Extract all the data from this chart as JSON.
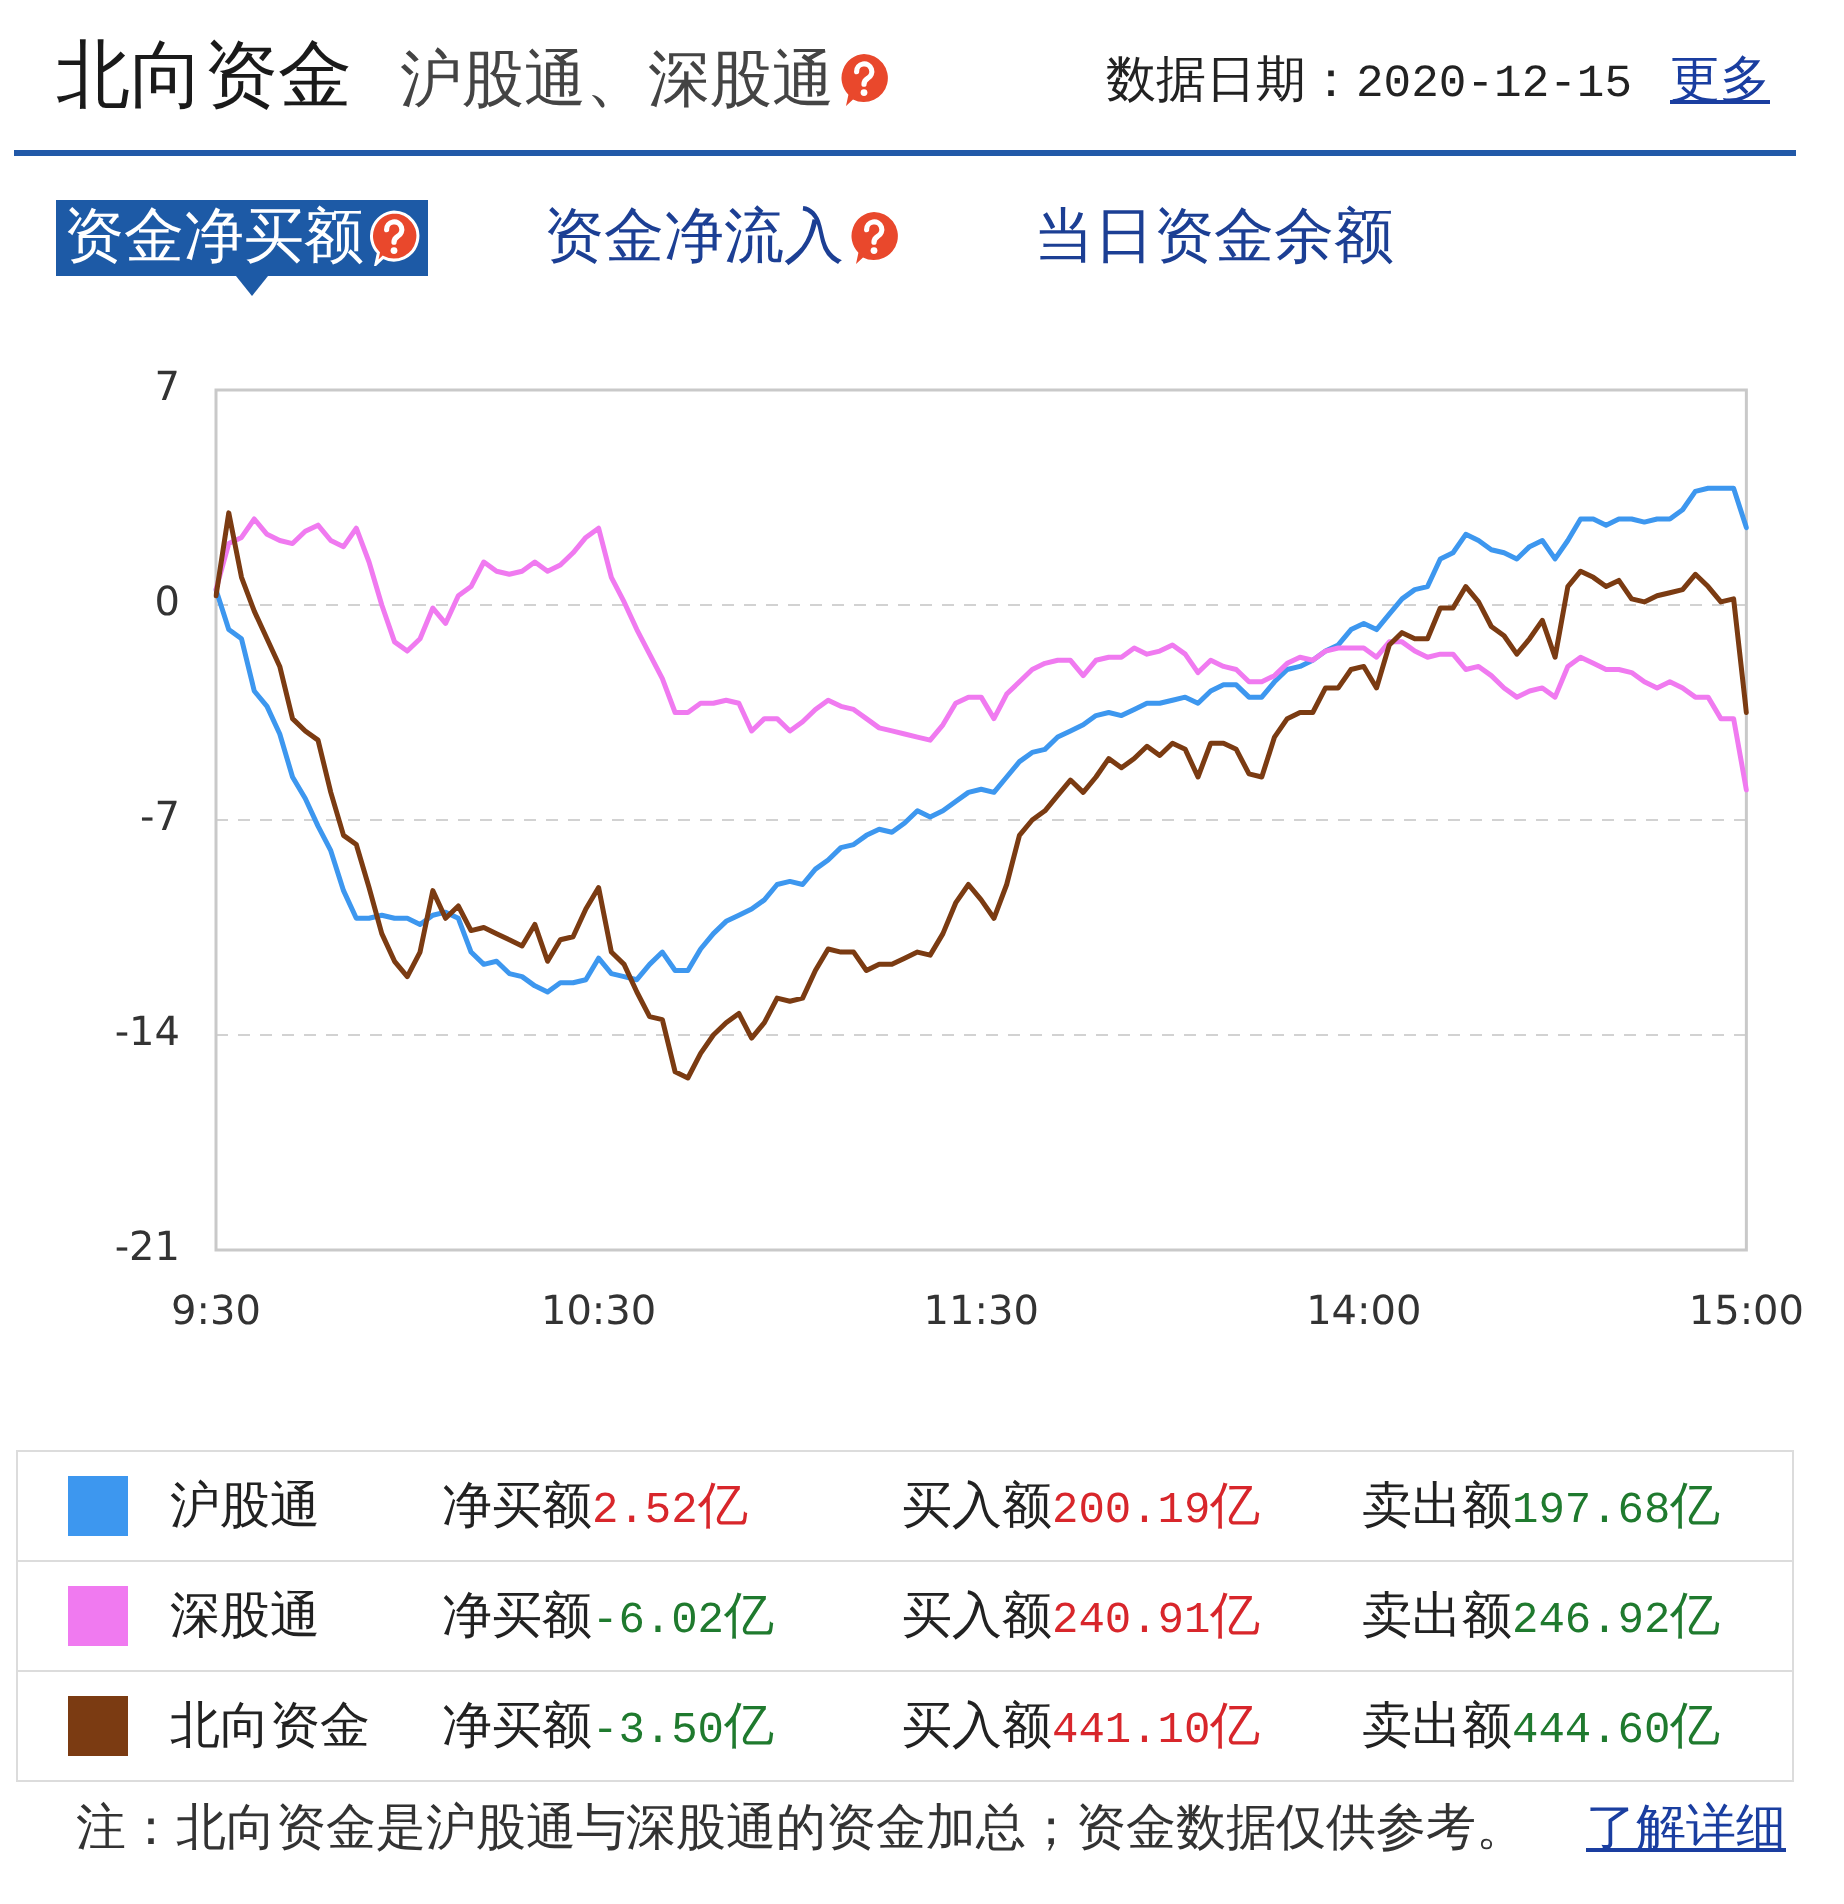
{
  "chart_data": {
    "type": "line",
    "title": "北向资金",
    "subtitle": "沪股通、深股通",
    "categories": [
      "9:30",
      null,
      null,
      null,
      null,
      null,
      null,
      null,
      null,
      null,
      null,
      null,
      null,
      null,
      null,
      null,
      null,
      null,
      null,
      null,
      null,
      null,
      null,
      null,
      null,
      null,
      null,
      null,
      null,
      null,
      "10:30",
      null,
      null,
      null,
      null,
      null,
      null,
      null,
      null,
      null,
      null,
      null,
      null,
      null,
      null,
      null,
      null,
      null,
      null,
      null,
      null,
      null,
      null,
      null,
      null,
      null,
      null,
      null,
      null,
      null,
      "11:30",
      null,
      null,
      null,
      null,
      null,
      null,
      null,
      null,
      null,
      null,
      null,
      null,
      null,
      null,
      null,
      null,
      null,
      null,
      null,
      null,
      null,
      null,
      null,
      null,
      null,
      null,
      null,
      null,
      null,
      "14:00",
      null,
      null,
      null,
      null,
      null,
      null,
      null,
      null,
      null,
      null,
      null,
      null,
      null,
      null,
      null,
      null,
      null,
      null,
      null,
      null,
      null,
      null,
      null,
      null,
      null,
      null,
      null,
      null,
      null,
      "15:00"
    ],
    "series": [
      {
        "name": "沪股通",
        "color": "#3d97ef",
        "values": [
          0.5,
          -0.8,
          -1.1,
          -2.8,
          -3.3,
          -4.2,
          -5.6,
          -6.3,
          -7.2,
          -8.0,
          -9.3,
          -10.2,
          -10.2,
          -10.1,
          -10.2,
          -10.2,
          -10.4,
          -10.1,
          -10.0,
          -10.2,
          -11.3,
          -11.7,
          -11.6,
          -12.0,
          -12.1,
          -12.4,
          -12.6,
          -12.3,
          -12.3,
          -12.2,
          -11.5,
          -12.0,
          -12.1,
          -12.2,
          -11.7,
          -11.3,
          -11.9,
          -11.9,
          -11.2,
          -10.7,
          -10.3,
          -10.1,
          -9.9,
          -9.6,
          -9.1,
          -9.0,
          -9.1,
          -8.6,
          -8.3,
          -7.9,
          -7.8,
          -7.5,
          -7.3,
          -7.4,
          -7.1,
          -6.7,
          -6.9,
          -6.7,
          -6.4,
          -6.1,
          -6.0,
          -6.1,
          -5.6,
          -5.1,
          -4.8,
          -4.7,
          -4.3,
          -4.1,
          -3.9,
          -3.6,
          -3.5,
          -3.6,
          -3.4,
          -3.2,
          -3.2,
          -3.1,
          -3.0,
          -3.2,
          -2.8,
          -2.6,
          -2.6,
          -3.0,
          -3.0,
          -2.5,
          -2.1,
          -2.0,
          -1.8,
          -1.5,
          -1.3,
          -0.8,
          -0.6,
          -0.8,
          -0.3,
          0.2,
          0.5,
          0.6,
          1.5,
          1.7,
          2.3,
          2.1,
          1.8,
          1.7,
          1.5,
          1.9,
          2.1,
          1.5,
          2.1,
          2.8,
          2.8,
          2.6,
          2.8,
          2.8,
          2.7,
          2.8,
          2.8,
          3.1,
          3.7,
          3.8,
          3.8,
          3.8,
          2.52
        ]
      },
      {
        "name": "深股通",
        "color": "#f07af0",
        "values": [
          0.5,
          2.0,
          2.2,
          2.8,
          2.3,
          2.1,
          2.0,
          2.4,
          2.6,
          2.1,
          1.9,
          2.5,
          1.4,
          0.0,
          -1.2,
          -1.5,
          -1.1,
          -0.1,
          -0.6,
          0.3,
          0.6,
          1.4,
          1.1,
          1.0,
          1.1,
          1.4,
          1.1,
          1.3,
          1.7,
          2.2,
          2.5,
          0.9,
          0.1,
          -0.8,
          -1.6,
          -2.4,
          -3.5,
          -3.5,
          -3.2,
          -3.2,
          -3.1,
          -3.2,
          -4.1,
          -3.7,
          -3.7,
          -4.1,
          -3.8,
          -3.4,
          -3.1,
          -3.3,
          -3.4,
          -3.7,
          -4.0,
          -4.1,
          -4.2,
          -4.3,
          -4.4,
          -3.9,
          -3.2,
          -3.0,
          -3.0,
          -3.7,
          -2.9,
          -2.5,
          -2.1,
          -1.9,
          -1.8,
          -1.8,
          -2.3,
          -1.8,
          -1.7,
          -1.7,
          -1.4,
          -1.6,
          -1.5,
          -1.3,
          -1.6,
          -2.2,
          -1.8,
          -2.0,
          -2.1,
          -2.5,
          -2.5,
          -2.3,
          -1.9,
          -1.7,
          -1.8,
          -1.5,
          -1.4,
          -1.4,
          -1.4,
          -1.7,
          -1.2,
          -1.2,
          -1.5,
          -1.7,
          -1.6,
          -1.6,
          -2.1,
          -2.0,
          -2.3,
          -2.7,
          -3.0,
          -2.8,
          -2.7,
          -3.0,
          -2.0,
          -1.7,
          -1.9,
          -2.1,
          -2.1,
          -2.2,
          -2.5,
          -2.7,
          -2.5,
          -2.7,
          -3.0,
          -3.0,
          -3.7,
          -3.7,
          -6.02
        ]
      },
      {
        "name": "北向资金",
        "color": "#7b3b12",
        "values": [
          0.3,
          3.0,
          0.9,
          -0.2,
          -1.1,
          -2.0,
          -3.7,
          -4.1,
          -4.4,
          -6.1,
          -7.5,
          -7.8,
          -9.2,
          -10.7,
          -11.6,
          -12.1,
          -11.3,
          -9.3,
          -10.2,
          -9.8,
          -10.6,
          -10.5,
          -10.7,
          -10.9,
          -11.1,
          -10.4,
          -11.6,
          -10.9,
          -10.8,
          -9.9,
          -9.2,
          -11.3,
          -11.7,
          -12.6,
          -13.4,
          -13.5,
          -15.2,
          -15.4,
          -14.6,
          -14.0,
          -13.6,
          -13.3,
          -14.1,
          -13.6,
          -12.8,
          -12.9,
          -12.8,
          -11.9,
          -11.2,
          -11.3,
          -11.3,
          -11.9,
          -11.7,
          -11.7,
          -11.5,
          -11.3,
          -11.4,
          -10.7,
          -9.7,
          -9.1,
          -9.6,
          -10.2,
          -9.1,
          -7.5,
          -7.0,
          -6.7,
          -6.2,
          -5.7,
          -6.1,
          -5.6,
          -5.0,
          -5.3,
          -5.0,
          -4.6,
          -4.9,
          -4.5,
          -4.7,
          -5.6,
          -4.5,
          -4.5,
          -4.7,
          -5.5,
          -5.6,
          -4.3,
          -3.7,
          -3.5,
          -3.5,
          -2.7,
          -2.7,
          -2.1,
          -2.0,
          -2.7,
          -1.3,
          -0.9,
          -1.1,
          -1.1,
          -0.1,
          -0.1,
          0.6,
          0.1,
          -0.7,
          -1.0,
          -1.6,
          -1.1,
          -0.5,
          -1.7,
          0.6,
          1.1,
          0.9,
          0.6,
          0.8,
          0.2,
          0.1,
          0.3,
          0.4,
          0.5,
          1.0,
          0.6,
          0.1,
          0.2,
          -3.5
        ]
      }
    ],
    "ylim": [
      -21,
      7
    ],
    "yticks": [
      -21,
      -14,
      -7,
      0,
      7
    ],
    "grid": "y",
    "legend": "bottom",
    "annotations": [
      "数据日期：2020-12-15",
      "更多",
      "资金净买额",
      "资金净流入",
      "当日资金余额",
      "净买额2.52亿",
      "买入额200.19亿",
      "卖出额197.68亿",
      "净买额-6.02亿",
      "买入额240.91亿",
      "卖出额246.92亿",
      "净买额-3.50亿",
      "买入额441.10亿",
      "卖出额444.60亿",
      "注：北向资金是沪股通与深股通的资金加总；资金数据仅供参考。",
      "了解详细"
    ]
  }
}
